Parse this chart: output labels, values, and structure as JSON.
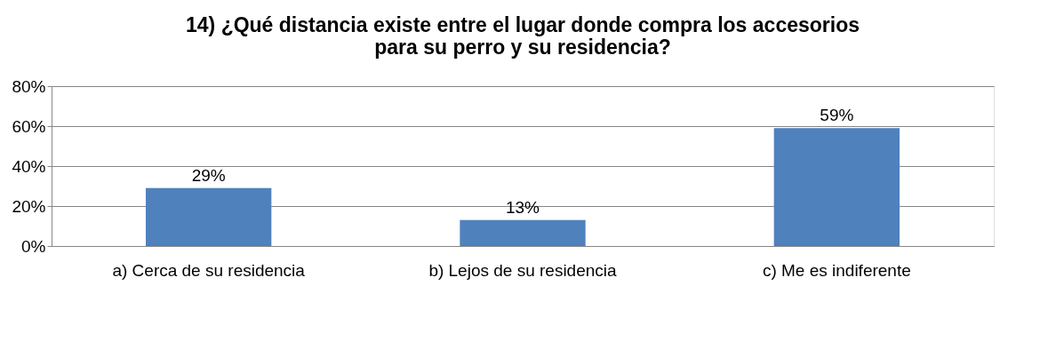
{
  "chart_data": {
    "type": "bar",
    "title": "14) ¿Qué distancia existe entre el lugar donde compra los accesorios para su perro y su residencia?",
    "categories": [
      "a) Cerca de su residencia",
      "b) Lejos de su residencia",
      "c) Me es indiferente"
    ],
    "values": [
      29,
      13,
      59
    ],
    "value_labels": [
      "29%",
      "13%",
      "59%"
    ],
    "color": "#4f81bd",
    "ylim": [
      0,
      80
    ],
    "yticks": [
      {
        "value": 0,
        "label": "0%"
      },
      {
        "value": 20,
        "label": "20%"
      },
      {
        "value": 40,
        "label": "40%"
      },
      {
        "value": 60,
        "label": "60%"
      },
      {
        "value": 80,
        "label": "80%"
      }
    ],
    "grid": "y"
  }
}
